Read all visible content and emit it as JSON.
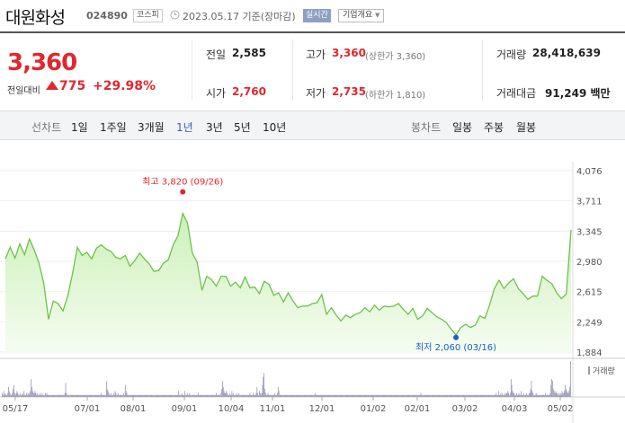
{
  "header": {
    "stock_name": "대원화성",
    "stock_code": "024890",
    "market": "코스피",
    "date": "2023.05.17 기준(장마감)",
    "realtime_label": "실시간",
    "company_info_label": "기업개요"
  },
  "quote": {
    "price": "3,360",
    "change_label": "전일대비",
    "change": "775",
    "change_pct": "+29.98%",
    "prev_close_label": "전일",
    "prev_close": "2,585",
    "open_label": "시가",
    "open": "2,760",
    "high_label": "고가",
    "high": "3,360",
    "high_note": "(상한가 3,360)",
    "low_label": "저가",
    "low": "2,735",
    "low_note": "(하한가 1,810)",
    "volume_label": "거래량",
    "volume": "28,418,639",
    "value_label": "거래대금",
    "value": "91,249 백만"
  },
  "period_tabs": {
    "label": "선차트",
    "items": [
      "1일",
      "1주일",
      "3개월",
      "1년",
      "3년",
      "5년",
      "10년"
    ],
    "selected": "1년"
  },
  "candle_tabs": {
    "label": "봉차트",
    "items": [
      "일봉",
      "주봉",
      "월봉"
    ]
  },
  "colors": {
    "rise": "#e0272f",
    "fall": "#1a5fc7",
    "line": "#6cc24a"
  },
  "chart_data": {
    "type": "area",
    "yticks": [
      "4,076",
      "3,711",
      "3,345",
      "2,980",
      "2,615",
      "2,249",
      "1,884"
    ],
    "ylim": [
      1884,
      4076
    ],
    "xticks": [
      "05/17",
      "07/01",
      "08/01",
      "09/01",
      "10/04",
      "11/01",
      "12/01",
      "01/02",
      "02/01",
      "03/02",
      "04/03",
      "05/02"
    ],
    "high_label": "최고 3,820 (09/26)",
    "low_label": "최저 2,060 (03/16)",
    "high_value": 3820,
    "low_value": 2060,
    "volume_label": "거래량",
    "series": [
      {
        "values": [
          3010,
          3150,
          3020,
          3190,
          3060,
          3250,
          3120,
          2960,
          2720,
          2280,
          2500,
          2470,
          2380,
          2560,
          2830,
          3150,
          3050,
          3090,
          3010,
          3140,
          3180,
          3130,
          3100,
          3030,
          3010,
          3050,
          2920,
          2990,
          3080,
          3010,
          2950,
          2860,
          2870,
          2960,
          3000,
          3180,
          3290,
          3560,
          3440,
          3080,
          2970,
          2630,
          2800,
          2760,
          2680,
          2800,
          2800,
          2680,
          2730,
          2660,
          2790,
          2660,
          2670,
          2590,
          2740,
          2700,
          2570,
          2600,
          2490,
          2600,
          2500,
          2420,
          2440,
          2440,
          2470,
          2480,
          2580,
          2340,
          2420,
          2330,
          2260,
          2330,
          2300,
          2340,
          2360,
          2420,
          2370,
          2450,
          2390,
          2440,
          2430,
          2440,
          2470,
          2400,
          2340,
          2410,
          2280,
          2320,
          2410,
          2360,
          2310,
          2280,
          2240,
          2160,
          2090,
          2180,
          2220,
          2180,
          2210,
          2320,
          2290,
          2450,
          2650,
          2750,
          2650,
          2720,
          2770,
          2650,
          2590,
          2520,
          2560,
          2560,
          2800,
          2750,
          2710,
          2600,
          2530,
          2585,
          3360
        ]
      }
    ],
    "volume": [
      2,
      1,
      3,
      1,
      2,
      1,
      1,
      2,
      5,
      3,
      2,
      1,
      1,
      2,
      4,
      6,
      2,
      1,
      2,
      3,
      2,
      1,
      1,
      2,
      1,
      1,
      2,
      1,
      3,
      1,
      1,
      2,
      1,
      2,
      1,
      2,
      3,
      9,
      5,
      3,
      2,
      2,
      3,
      2,
      1,
      2,
      1,
      1,
      2,
      1,
      1,
      2,
      1,
      1,
      1,
      2,
      1,
      2,
      1,
      1,
      1,
      1,
      1,
      1,
      1,
      1,
      1,
      1,
      1,
      1,
      1,
      1,
      1,
      1,
      1,
      1,
      1,
      1,
      1,
      1,
      2,
      7,
      2,
      1,
      1,
      1,
      1,
      1,
      1,
      1,
      1,
      1,
      1,
      1,
      1,
      1,
      1,
      1,
      1,
      1,
      1,
      1,
      1,
      1,
      1,
      1,
      1,
      1,
      1,
      1,
      1,
      1,
      1,
      1,
      1,
      1,
      1,
      1,
      1,
      1,
      1,
      1,
      1,
      1,
      1,
      1,
      2,
      1,
      1,
      1,
      1,
      1,
      1,
      8,
      4,
      3,
      2,
      1,
      1,
      2,
      1,
      1,
      2,
      1,
      3,
      2,
      1,
      1,
      2,
      1,
      1,
      1,
      1,
      1,
      1,
      2,
      1,
      6,
      3,
      2,
      1,
      1,
      1,
      1,
      1,
      1,
      1,
      1,
      1,
      1,
      1,
      1,
      1,
      1,
      1,
      1,
      1,
      1,
      1,
      1,
      1,
      1,
      1,
      1,
      1,
      1,
      1,
      1,
      1,
      1,
      1,
      1,
      1,
      1,
      1,
      1,
      1,
      1,
      1,
      1,
      1,
      1,
      1,
      1,
      1,
      1,
      1,
      1,
      1,
      1,
      1,
      1,
      1,
      1,
      1,
      1,
      1,
      1,
      1,
      1,
      1,
      1,
      1,
      1,
      1,
      3,
      1,
      1,
      1,
      2,
      1,
      1,
      1,
      3,
      1,
      1,
      2,
      1,
      1,
      2,
      1,
      1,
      1,
      1,
      1,
      1,
      1,
      1,
      1,
      1,
      2,
      1,
      1,
      1,
      1,
      1,
      1,
      1,
      1,
      1,
      1,
      1,
      1,
      1,
      1,
      1,
      1,
      1,
      1,
      1,
      1,
      1,
      1,
      2,
      1,
      1,
      1,
      1,
      1,
      2,
      4,
      8,
      5,
      3,
      2,
      2,
      3,
      2,
      1,
      1,
      2,
      1,
      1,
      3,
      1,
      2,
      1,
      1,
      1,
      2,
      1,
      1,
      2,
      1,
      1,
      1,
      1,
      1,
      1,
      1,
      1,
      1,
      1,
      1,
      1,
      1,
      2,
      1,
      1,
      1,
      2,
      1,
      1,
      1,
      2,
      5,
      2,
      1,
      3,
      2,
      1,
      2,
      6,
      10,
      12,
      4,
      2,
      1,
      1,
      2,
      1,
      1,
      1,
      1,
      1,
      1,
      1,
      1,
      2,
      1,
      1,
      2,
      5,
      3,
      1,
      1,
      1,
      1,
      1,
      1,
      1,
      1,
      1,
      1,
      1,
      1,
      1,
      1,
      1,
      1,
      1,
      1,
      1,
      1,
      1,
      1,
      1,
      1,
      1,
      1,
      1,
      1,
      1,
      1,
      1,
      1,
      1,
      1,
      1,
      1,
      1,
      1,
      1,
      1,
      1,
      1,
      1,
      1,
      1,
      2,
      1,
      1,
      1,
      1,
      1,
      1,
      1,
      1,
      1,
      1,
      1,
      1,
      1,
      1,
      1,
      1,
      1,
      1,
      1,
      1,
      1,
      1,
      1,
      1,
      1,
      1,
      1,
      1,
      1,
      1,
      1,
      1,
      1,
      1,
      1,
      1,
      1,
      1,
      1,
      1,
      1,
      1,
      1,
      1,
      1,
      1,
      1,
      1,
      1,
      1,
      1,
      1,
      1,
      1,
      1,
      1,
      1,
      1,
      1,
      1,
      1,
      1,
      1,
      1,
      1,
      1,
      1,
      1,
      1,
      1,
      1,
      1,
      1,
      1,
      1,
      1,
      1,
      1,
      1,
      1,
      1,
      1,
      1,
      1,
      1,
      1,
      1,
      1,
      1,
      1,
      1,
      1,
      1,
      1,
      1,
      1,
      1,
      1,
      1,
      1,
      1,
      1,
      1,
      1,
      1,
      1,
      1,
      1,
      1,
      1,
      1,
      1,
      1,
      1,
      1,
      1,
      1,
      1,
      1,
      1,
      1,
      1,
      1,
      1,
      1,
      1,
      1,
      1,
      1,
      1,
      1,
      1,
      1,
      1,
      2,
      1,
      1,
      1,
      1,
      1,
      1,
      1,
      1,
      1,
      1,
      1,
      1,
      1,
      1,
      1,
      1,
      1,
      1,
      1,
      1,
      1,
      1,
      1,
      1,
      1,
      1,
      1,
      1,
      1,
      1,
      1,
      1,
      1,
      1,
      1,
      1,
      1,
      1,
      1,
      1,
      1,
      1,
      1,
      1,
      1,
      1,
      1,
      1,
      1,
      1,
      1,
      1,
      1,
      1,
      1,
      1,
      1,
      1,
      1,
      1,
      1,
      1,
      1,
      1,
      1,
      1,
      1,
      1,
      1,
      1,
      1,
      1,
      1,
      1,
      1,
      1,
      1,
      1,
      1,
      1,
      1,
      1,
      1,
      1,
      1,
      1,
      1,
      1,
      1,
      1,
      1,
      1,
      1,
      1,
      1,
      2,
      1,
      1,
      3,
      1,
      1,
      2,
      1,
      2,
      1,
      1,
      2,
      1,
      2,
      2,
      3,
      2,
      1,
      2,
      9,
      6,
      3,
      2,
      2,
      1,
      1,
      2,
      1,
      1,
      2,
      1,
      1,
      3,
      1,
      1,
      2,
      1,
      1,
      1,
      2,
      1,
      1,
      2,
      2,
      4,
      8,
      3,
      2,
      1,
      1,
      1,
      2,
      1,
      1,
      1,
      1,
      1,
      1,
      1,
      1,
      1,
      1,
      1,
      2,
      1,
      1,
      1,
      1,
      1,
      2,
      6,
      9,
      8,
      4,
      3,
      2,
      3,
      2,
      2,
      1,
      2,
      1,
      2,
      1,
      3,
      2,
      2,
      3,
      6,
      4,
      3,
      2,
      2,
      3,
      5,
      18
    ]
  }
}
